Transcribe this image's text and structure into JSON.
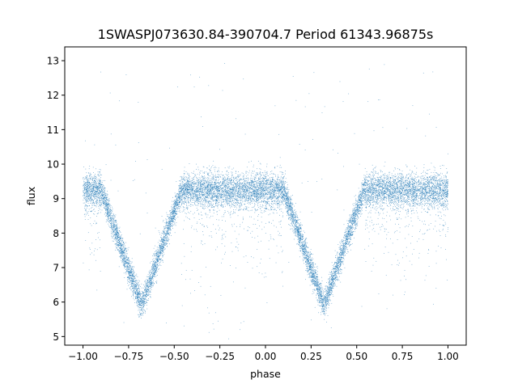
{
  "chart_data": {
    "type": "scatter",
    "title": "1SWASPJ073630.84-390704.7 Period 61343.96875s",
    "xlabel": "phase",
    "ylabel": "flux",
    "xlim": [
      -1.1,
      1.1
    ],
    "ylim": [
      4.75,
      13.4
    ],
    "xticks": [
      "−1.00",
      "−0.75",
      "−0.50",
      "−0.25",
      "0.00",
      "0.25",
      "0.50",
      "0.75",
      "1.00"
    ],
    "xtick_values": [
      -1.0,
      -0.75,
      -0.5,
      -0.25,
      0.0,
      0.25,
      0.5,
      0.75,
      1.0
    ],
    "yticks": [
      "5",
      "6",
      "7",
      "8",
      "9",
      "10",
      "11",
      "12",
      "13"
    ],
    "ytick_values": [
      5,
      6,
      7,
      8,
      9,
      10,
      11,
      12,
      13
    ],
    "grid": false,
    "point_color": "#1f77b4",
    "series": [
      {
        "baseline_flux": 9.25,
        "baseline_scatter": 0.25,
        "eclipse_minima_phase": [
          -0.68,
          0.32
        ],
        "eclipse_minimum_flux": 5.9,
        "eclipse_half_width_phase": 0.22,
        "outlier_flux_range": [
          5.1,
          13.0
        ],
        "n_points_approx": 14000
      }
    ]
  }
}
